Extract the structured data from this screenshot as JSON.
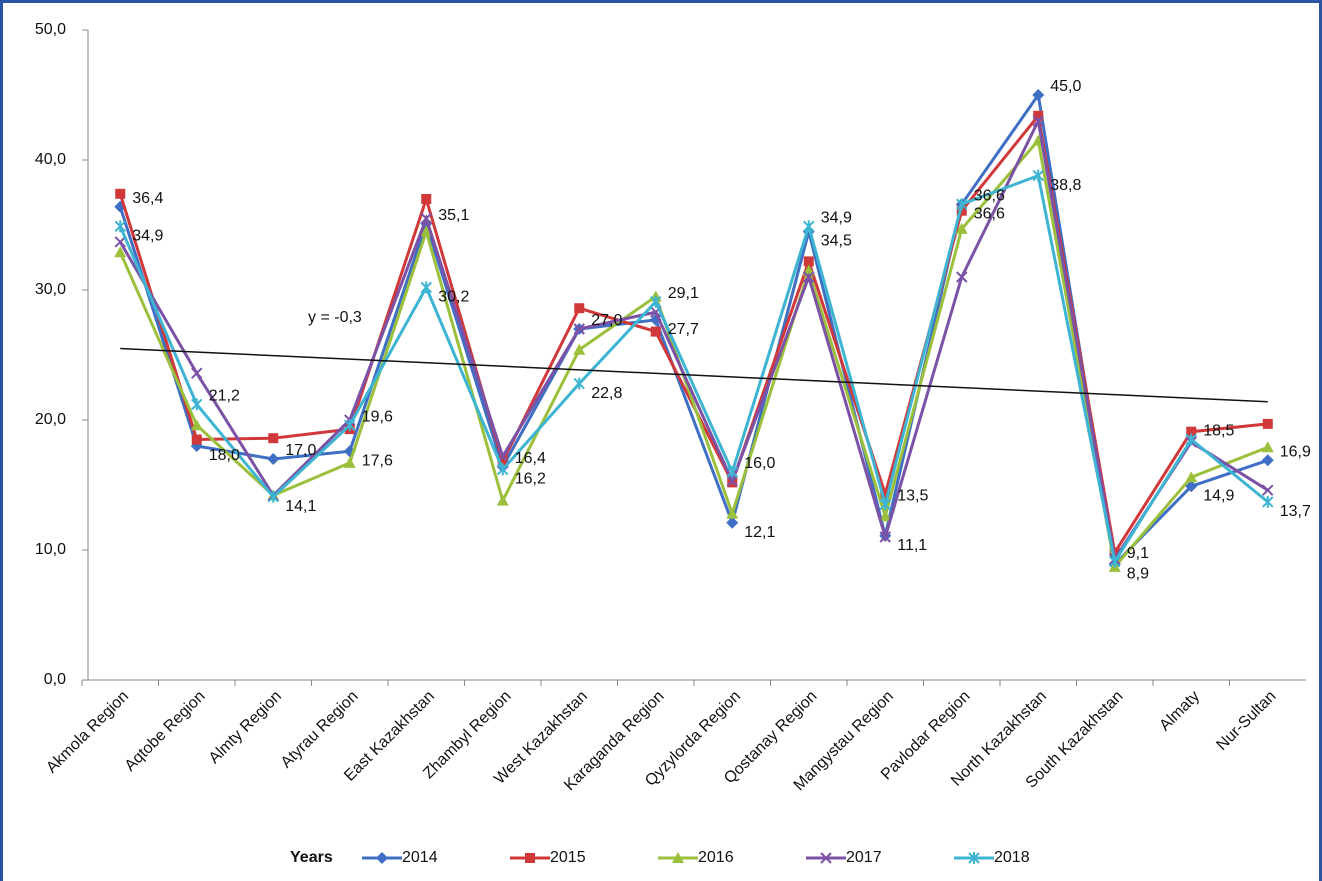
{
  "chart_data": {
    "type": "line",
    "categories": [
      "Akmola Region",
      "Aqtobe Region",
      "Almty Region",
      "Atyrau Region",
      "East Kazakhstan",
      "Zhambyl Region",
      "West Kazakhstan",
      "Karaganda Region",
      "Qyzylorda Region",
      "Qostanay Region",
      "Mangystau Region",
      "Pavlodar Region",
      "North Kazakhstan",
      "South Kazakhstan",
      "Almaty",
      "Nur-Sultan"
    ],
    "series": [
      {
        "name": "2014",
        "color": "#3f6fc4",
        "marker": "diamond",
        "values": [
          36.4,
          18.0,
          17.0,
          17.6,
          35.1,
          16.4,
          27.0,
          27.7,
          12.1,
          34.5,
          11.1,
          36.6,
          45.0,
          8.9,
          14.9,
          16.9
        ],
        "value_labels": [
          "36,4",
          "18,0",
          "17,0",
          "17,6",
          "35,1",
          "16,4",
          "27,0",
          "27,7",
          "12,1",
          "34,5",
          "11,1",
          "36,6",
          "45,0",
          "8,9",
          "14,9",
          "16,9"
        ]
      },
      {
        "name": "2015",
        "color": "#d0383a",
        "marker": "square",
        "values": [
          37.4,
          18.5,
          18.6,
          19.3,
          37.0,
          16.8,
          28.6,
          26.8,
          15.2,
          32.2,
          14.3,
          36.1,
          43.4,
          9.8,
          19.1,
          19.7
        ]
      },
      {
        "name": "2016",
        "color": "#9bc03c",
        "marker": "triangle",
        "values": [
          32.9,
          19.6,
          14.2,
          16.7,
          34.5,
          13.8,
          25.4,
          29.5,
          12.8,
          31.5,
          12.6,
          34.7,
          41.5,
          8.7,
          15.6,
          17.9
        ]
      },
      {
        "name": "2017",
        "color": "#7b52a6",
        "marker": "x",
        "values": [
          33.7,
          23.6,
          14.2,
          20.0,
          35.5,
          17.2,
          27.0,
          28.3,
          15.3,
          31.0,
          11.0,
          31.0,
          43.0,
          9.3,
          18.3,
          14.6
        ]
      },
      {
        "name": "2018",
        "color": "#3cb4d2",
        "marker": "star",
        "values": [
          34.9,
          21.2,
          14.1,
          19.6,
          30.2,
          16.2,
          22.8,
          29.1,
          16.0,
          34.9,
          13.5,
          36.6,
          38.8,
          9.1,
          18.5,
          13.7
        ],
        "value_labels": [
          "34,9",
          "21,2",
          "14,1",
          "19,6",
          "30,2",
          "16,2",
          "22,8",
          "29,1",
          "16,0",
          "34,9",
          "13,5",
          "36,6",
          "38,8",
          "9,1",
          "18,5",
          "13,7"
        ]
      }
    ],
    "trendline": {
      "label": "y = -0,3",
      "start": 25.5,
      "end": 21.4,
      "color": "#111111"
    },
    "ylim": [
      0,
      50
    ],
    "yticks": [
      {
        "value": 0,
        "label": "0,0"
      },
      {
        "value": 10,
        "label": "10,0"
      },
      {
        "value": 20,
        "label": "20,0"
      },
      {
        "value": 30,
        "label": "30,0"
      },
      {
        "value": 40,
        "label": "40,0"
      },
      {
        "value": 50,
        "label": "50,0"
      }
    ],
    "legend": "bottom",
    "legend_title": "Years"
  }
}
